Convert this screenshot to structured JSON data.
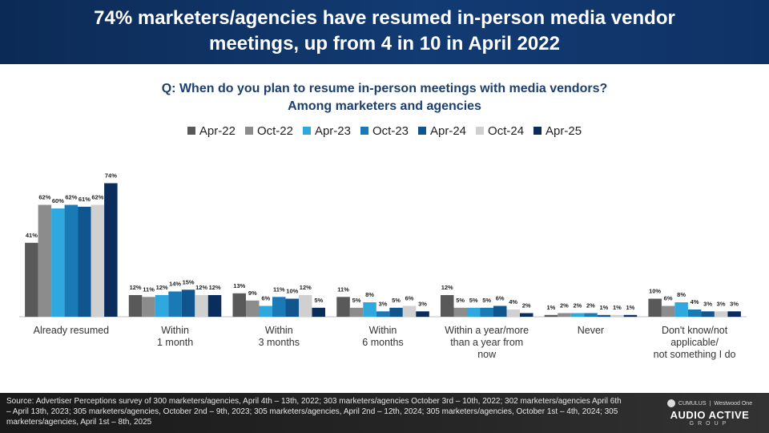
{
  "header": {
    "line1": "74% marketers/agencies have resumed in-person media vendor",
    "line2": "meetings, up from 4 in 10 in April 2022"
  },
  "subtitle": {
    "line1": "Q: When do you plan to resume in-person meetings with media vendors?",
    "line2": "Among marketers and agencies"
  },
  "chart_data": {
    "type": "bar",
    "categories": [
      [
        "Already resumed"
      ],
      [
        "Within",
        "1 month"
      ],
      [
        "Within",
        "3 months"
      ],
      [
        "Within",
        "6 months"
      ],
      [
        "Within a year/more",
        "than a year from",
        "now"
      ],
      [
        "Never"
      ],
      [
        "Don't know/not",
        "applicable/",
        "not something I do"
      ]
    ],
    "series": [
      {
        "name": "Apr-22",
        "color": "#595959",
        "values": [
          41,
          12,
          13,
          11,
          12,
          1,
          10
        ]
      },
      {
        "name": "Oct-22",
        "color": "#8c8c8c",
        "values": [
          62,
          11,
          9,
          5,
          5,
          2,
          6
        ]
      },
      {
        "name": "Apr-23",
        "color": "#2fa8df",
        "values": [
          60,
          12,
          6,
          8,
          5,
          2,
          8
        ]
      },
      {
        "name": "Oct-23",
        "color": "#1a7ab5",
        "values": [
          62,
          14,
          11,
          3,
          5,
          2,
          4
        ]
      },
      {
        "name": "Apr-24",
        "color": "#10558e",
        "values": [
          61,
          15,
          10,
          5,
          6,
          1,
          3
        ]
      },
      {
        "name": "Oct-24",
        "color": "#d0d0d0",
        "values": [
          62,
          12,
          12,
          6,
          4,
          1,
          3
        ]
      },
      {
        "name": "Apr-25",
        "color": "#0b2d5c",
        "values": [
          74,
          12,
          5,
          3,
          2,
          1,
          3
        ]
      }
    ],
    "value_suffix": "%",
    "ylim": [
      0,
      80
    ],
    "legend_position": "top",
    "grid": false
  },
  "footer": {
    "source": "Source: Advertiser Perceptions survey of 300 marketers/agencies, April 4th – 13th,  2022; 303 marketers/agencies October 3rd – 10th, 2022; 302 marketers/agencies April 6th – April 13th, 2023; 305 marketers/agencies, October 2nd – 9th, 2023; 305 marketers/agencies, April 2nd – 12th, 2024; 305 marketers/agencies, October 1st – 4th, 2024; 305 marketers/agencies, April 1st –  8th, 2025",
    "brand_top_left": "CUMULUS",
    "brand_top_right": "Westwood One",
    "brand_main": "AUDIO ACTIVE",
    "brand_sub": "GROUP"
  }
}
